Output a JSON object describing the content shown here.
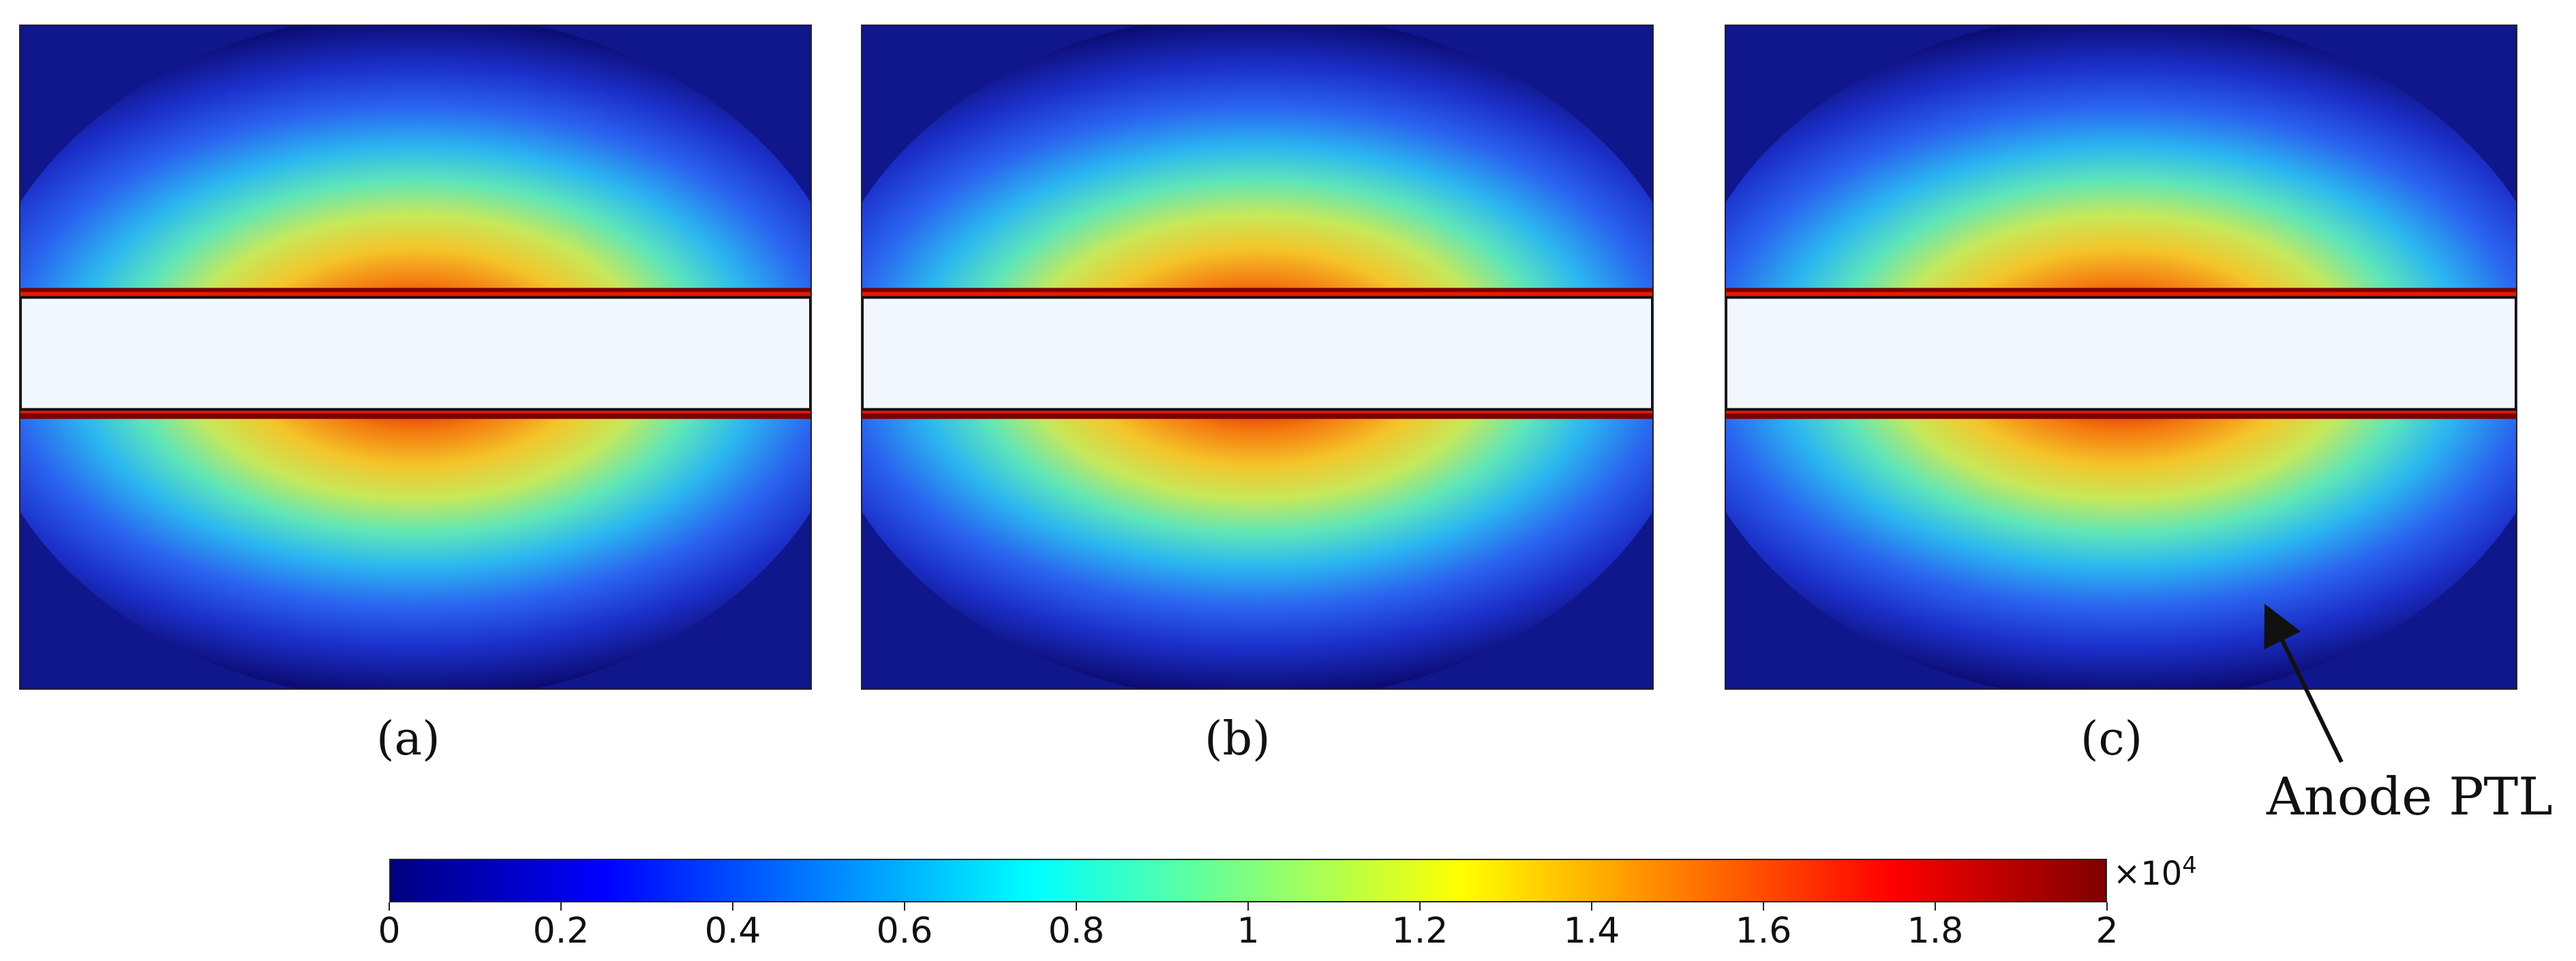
{
  "panels": [
    {
      "id": "a",
      "label": "(a)"
    },
    {
      "id": "b",
      "label": "(b)"
    },
    {
      "id": "c",
      "label": "(c)"
    }
  ],
  "annotation": {
    "text": "Anode PTL",
    "target_panel": "c"
  },
  "colorbar": {
    "colormap": "jet",
    "min": 0,
    "max": 2,
    "ticks": [
      "0",
      "0.2",
      "0.4",
      "0.6",
      "0.8",
      "1",
      "1.2",
      "1.4",
      "1.6",
      "1.8",
      "2"
    ],
    "multiplier_base": "×10",
    "multiplier_exp": "4"
  },
  "colors": {
    "membrane": "#f2f6ff",
    "frame": "#222222",
    "jet_stops": [
      "#00007f",
      "#0000ff",
      "#007fff",
      "#00ffff",
      "#7fff7f",
      "#ffff00",
      "#ff7f00",
      "#ff0000",
      "#7f0000"
    ]
  }
}
